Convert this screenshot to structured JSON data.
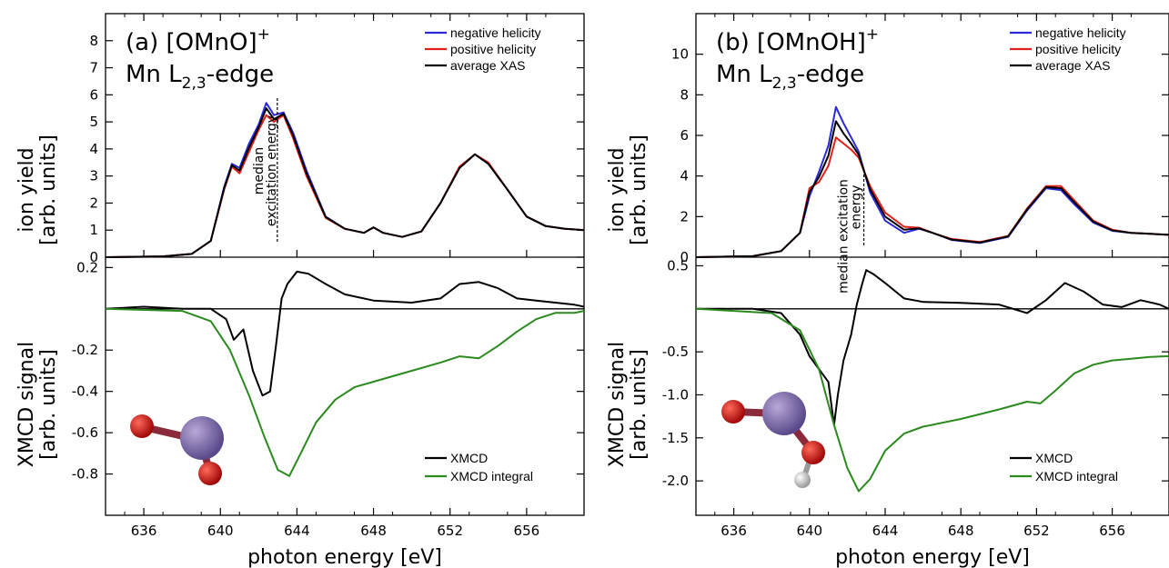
{
  "colors": {
    "negative": "#2a2ad8",
    "positive": "#e0201a",
    "average": "#000000",
    "xmcd": "#000000",
    "integral": "#2a8a1e"
  },
  "chart_data": [
    {
      "type": "line",
      "panel": "(a)",
      "title_prefix": "(a) [OMnO]",
      "title_sup": "+",
      "subtitle": "Mn L",
      "subtitle_sub": "2,3",
      "subtitle_suffix": "-edge",
      "xlabel": "photon energy [eV]",
      "xlim": [
        634,
        659
      ],
      "xticks": [
        "636",
        "640",
        "644",
        "648",
        "652",
        "656"
      ],
      "top": {
        "ylabel_1": "ion yield",
        "ylabel_2": "[arb. units]",
        "ylim": [
          0,
          9
        ],
        "yticks": [
          "0",
          "1",
          "2",
          "3",
          "4",
          "5",
          "6",
          "7",
          "8"
        ],
        "annotation_1": "median",
        "annotation_2": "excitation energy",
        "annotation_x": 642.5,
        "legend": [
          "negative helicity",
          "positive helicity",
          "average XAS"
        ],
        "series": [
          {
            "name": "negative helicity",
            "x": [
              634,
              637,
              638.5,
              639.5,
              640.2,
              640.6,
              641.0,
              641.5,
              642.0,
              642.4,
              642.8,
              643.3,
              643.8,
              644.5,
              645.5,
              646.5,
              647.5,
              648.0,
              648.5,
              649.5,
              650.5,
              651.5,
              652.5,
              653.3,
              654.0,
              655.0,
              656.0,
              657.0,
              658.0,
              659.0
            ],
            "y": [
              0,
              0.03,
              0.12,
              0.6,
              2.6,
              3.45,
              3.3,
              4.2,
              4.9,
              5.7,
              5.25,
              5.35,
              4.6,
              3.2,
              1.5,
              1.05,
              0.9,
              1.1,
              0.9,
              0.75,
              0.95,
              2.0,
              3.3,
              3.8,
              3.45,
              2.5,
              1.5,
              1.15,
              1.05,
              1.0
            ]
          },
          {
            "name": "positive helicity",
            "x": [
              634,
              637,
              638.5,
              639.5,
              640.2,
              640.6,
              641.0,
              641.5,
              642.0,
              642.4,
              642.8,
              643.3,
              643.8,
              644.5,
              645.5,
              646.5,
              647.5,
              648.0,
              648.5,
              649.5,
              650.5,
              651.5,
              652.5,
              653.3,
              654.0,
              655.0,
              656.0,
              657.0,
              658.0,
              659.0
            ],
            "y": [
              0,
              0.03,
              0.12,
              0.6,
              2.5,
              3.35,
              3.1,
              3.9,
              4.7,
              5.25,
              5.0,
              5.25,
              4.4,
              3.0,
              1.45,
              1.05,
              0.9,
              1.1,
              0.9,
              0.75,
              0.95,
              2.0,
              3.35,
              3.8,
              3.5,
              2.5,
              1.5,
              1.15,
              1.05,
              1.0
            ]
          },
          {
            "name": "average XAS",
            "x": [
              634,
              637,
              638.5,
              639.5,
              640.2,
              640.6,
              641.0,
              641.5,
              642.0,
              642.4,
              642.8,
              643.3,
              643.8,
              644.5,
              645.5,
              646.5,
              647.5,
              648.0,
              648.5,
              649.5,
              650.5,
              651.5,
              652.5,
              653.3,
              654.0,
              655.0,
              656.0,
              657.0,
              658.0,
              659.0
            ],
            "y": [
              0,
              0.03,
              0.12,
              0.6,
              2.55,
              3.4,
              3.2,
              4.05,
              4.8,
              5.5,
              5.1,
              5.3,
              4.5,
              3.1,
              1.48,
              1.05,
              0.9,
              1.1,
              0.9,
              0.75,
              0.95,
              2.0,
              3.3,
              3.8,
              3.45,
              2.5,
              1.5,
              1.15,
              1.05,
              1.0
            ]
          }
        ]
      },
      "bottom": {
        "ylabel_1": "XMCD signal",
        "ylabel_2": "[arb. units]",
        "ylim": [
          -1.0,
          0.25
        ],
        "yticks": [
          "0.2",
          "-0.2",
          "-0.4",
          "-0.6",
          "-0.8"
        ],
        "legend": [
          "XMCD",
          "XMCD integral"
        ],
        "series": [
          {
            "name": "XMCD",
            "x": [
              634,
              636,
              638,
              639.5,
              640.3,
              640.7,
              641.2,
              641.7,
              642.2,
              642.6,
              642.9,
              643.2,
              643.5,
              644.0,
              644.6,
              645.5,
              646.5,
              648,
              650,
              651.5,
              652.5,
              653.5,
              654.5,
              655.5,
              656.5,
              657.5,
              658.5,
              659
            ],
            "y": [
              0,
              0.01,
              0,
              0,
              -0.05,
              -0.15,
              -0.1,
              -0.3,
              -0.42,
              -0.4,
              -0.18,
              0.05,
              0.12,
              0.18,
              0.17,
              0.12,
              0.07,
              0.04,
              0.03,
              0.05,
              0.12,
              0.13,
              0.1,
              0.05,
              0.04,
              0.03,
              0.02,
              0.01
            ]
          },
          {
            "name": "XMCD integral",
            "x": [
              634,
              638,
              639.5,
              640.5,
              641.5,
              642.3,
              643,
              643.6,
              644.2,
              645,
              646,
              647,
              648.5,
              650,
              651.5,
              652.5,
              653.5,
              654.5,
              655.5,
              656.5,
              657.5,
              658.5,
              659
            ],
            "y": [
              0,
              -0.01,
              -0.06,
              -0.2,
              -0.42,
              -0.62,
              -0.78,
              -0.81,
              -0.7,
              -0.55,
              -0.44,
              -0.38,
              -0.34,
              -0.3,
              -0.26,
              -0.23,
              -0.24,
              -0.18,
              -0.11,
              -0.05,
              -0.02,
              -0.02,
              -0.01
            ]
          }
        ]
      }
    },
    {
      "type": "line",
      "panel": "(b)",
      "title_prefix": "(b) [OMnOH]",
      "title_sup": "+",
      "subtitle": "Mn L",
      "subtitle_sub": "2,3",
      "subtitle_suffix": "-edge",
      "xlabel": "photon energy [eV]",
      "xlim": [
        634,
        659
      ],
      "xticks": [
        "636",
        "640",
        "644",
        "648",
        "652",
        "656"
      ],
      "top": {
        "ylabel_1": "ion yield",
        "ylabel_2": "[arb. units]",
        "ylim": [
          0,
          12
        ],
        "yticks": [
          "0",
          "2",
          "4",
          "6",
          "8",
          "10"
        ],
        "annotation_1": "median excitation",
        "annotation_2": "energy",
        "annotation_x": 642.2,
        "legend": [
          "negative helicity",
          "positive helicity",
          "average XAS"
        ],
        "series": [
          {
            "name": "negative helicity",
            "x": [
              634,
              637,
              638.5,
              639.5,
              640.0,
              640.5,
              641.0,
              641.4,
              641.8,
              642.2,
              642.6,
              643.2,
              644.0,
              645.0,
              645.8,
              646.5,
              647.5,
              649,
              650.5,
              651.5,
              652.5,
              653.3,
              654.0,
              655.0,
              656.0,
              657.0,
              658.0,
              659.0
            ],
            "y": [
              0,
              0.05,
              0.3,
              1.2,
              3.0,
              4.2,
              5.5,
              7.4,
              6.6,
              5.9,
              5.2,
              3.2,
              1.8,
              1.2,
              1.4,
              1.2,
              0.85,
              0.7,
              1.0,
              2.3,
              3.4,
              3.3,
              2.6,
              1.7,
              1.3,
              1.2,
              1.15,
              1.1
            ]
          },
          {
            "name": "positive helicity",
            "x": [
              634,
              637,
              638.5,
              639.5,
              640.0,
              640.5,
              641.0,
              641.4,
              641.8,
              642.2,
              642.6,
              643.2,
              644.0,
              645.0,
              645.8,
              646.5,
              647.5,
              649,
              650.5,
              651.5,
              652.5,
              653.3,
              654.0,
              655.0,
              656.0,
              657.0,
              658.0,
              659.0
            ],
            "y": [
              0,
              0.05,
              0.3,
              1.2,
              3.4,
              3.7,
              4.5,
              5.9,
              5.6,
              5.3,
              4.9,
              3.5,
              2.2,
              1.5,
              1.45,
              1.2,
              0.9,
              0.75,
              1.05,
              2.4,
              3.5,
              3.5,
              2.8,
              1.8,
              1.35,
              1.2,
              1.15,
              1.1
            ]
          },
          {
            "name": "average XAS",
            "x": [
              634,
              637,
              638.5,
              639.5,
              640.0,
              640.5,
              641.0,
              641.4,
              641.8,
              642.2,
              642.6,
              643.2,
              644.0,
              645.0,
              645.8,
              646.5,
              647.5,
              649,
              650.5,
              651.5,
              652.5,
              653.3,
              654.0,
              655.0,
              656.0,
              657.0,
              658.0,
              659.0
            ],
            "y": [
              0,
              0.05,
              0.3,
              1.2,
              3.2,
              3.95,
              5.0,
              6.7,
              6.1,
              5.6,
              5.05,
              3.35,
              2.0,
              1.35,
              1.42,
              1.2,
              0.87,
              0.72,
              1.02,
              2.35,
              3.45,
              3.4,
              2.7,
              1.75,
              1.32,
              1.2,
              1.15,
              1.1
            ]
          }
        ]
      },
      "bottom": {
        "ylabel_1": "XMCD signal",
        "ylabel_2": "[arb. units]",
        "ylim": [
          -2.4,
          0.6
        ],
        "yticks": [
          "0.5",
          "-0.5",
          "-1.0",
          "-1.5",
          "-2.0"
        ],
        "legend": [
          "XMCD",
          "XMCD integral"
        ],
        "series": [
          {
            "name": "XMCD",
            "x": [
              634,
              637,
              638.5,
              639.5,
              640.0,
              640.5,
              641.0,
              641.3,
              641.5,
              641.8,
              642.2,
              642.5,
              642.8,
              643.0,
              643.4,
              644.0,
              645.0,
              646.0,
              648,
              650,
              651.5,
              652.5,
              653.5,
              654.5,
              655.5,
              656.5,
              657.5,
              658.5,
              659
            ],
            "y": [
              0,
              0,
              -0.05,
              -0.3,
              -0.55,
              -0.7,
              -0.85,
              -1.35,
              -1.0,
              -0.6,
              -0.3,
              0.05,
              0.3,
              0.45,
              0.4,
              0.3,
              0.12,
              0.08,
              0.07,
              0.05,
              -0.05,
              0.1,
              0.3,
              0.2,
              0.05,
              0.02,
              0.1,
              0.05,
              0.0
            ]
          },
          {
            "name": "XMCD integral",
            "x": [
              634,
              638,
              639.5,
              640.5,
              641.3,
              642.0,
              642.6,
              643.2,
              644,
              645,
              646,
              648,
              650,
              651.5,
              652.2,
              653,
              654,
              655,
              656,
              657,
              658,
              659
            ],
            "y": [
              0,
              -0.05,
              -0.25,
              -0.7,
              -1.35,
              -1.85,
              -2.12,
              -1.98,
              -1.65,
              -1.45,
              -1.37,
              -1.28,
              -1.17,
              -1.08,
              -1.1,
              -0.95,
              -0.75,
              -0.65,
              -0.6,
              -0.58,
              -0.56,
              -0.55
            ]
          }
        ]
      }
    }
  ]
}
